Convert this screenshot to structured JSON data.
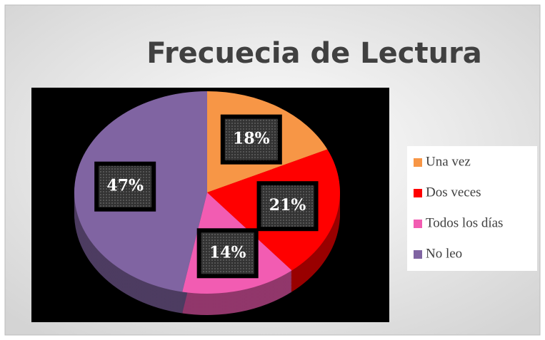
{
  "chart_data": {
    "type": "pie",
    "title": "Frecuecia de Lectura",
    "categories": [
      "Una vez",
      "Dos veces",
      "Todos los días",
      "No leo"
    ],
    "values": [
      18,
      21,
      14,
      47
    ],
    "value_labels": [
      "18%",
      "21%",
      "14%",
      "47%"
    ],
    "colors": [
      "#f79646",
      "#ff0000",
      "#f25cb2",
      "#8064a2"
    ],
    "legend": "right"
  }
}
